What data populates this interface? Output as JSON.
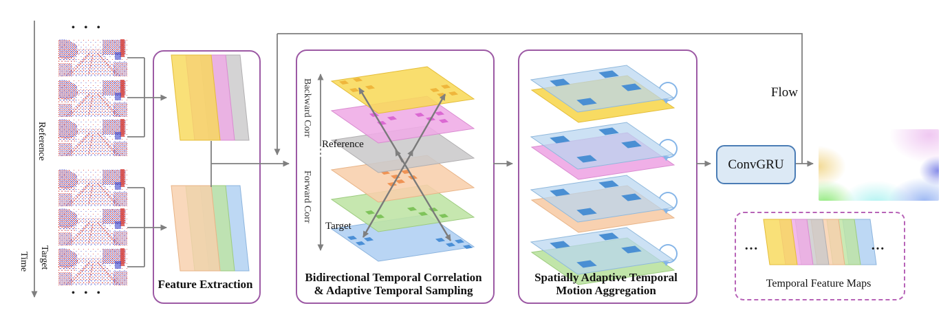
{
  "figure": {
    "time_axis": {
      "label": "Time"
    },
    "inputs": {
      "reference_label": "Reference",
      "target_label": "Target",
      "dots_top": "• • •",
      "dots_bottom": "• • •"
    },
    "feature_extraction": {
      "caption": "Feature Extraction"
    },
    "correlation": {
      "caption_line1": "Bidirectional Temporal Correlation",
      "caption_line2": "&  Adaptive Temporal Sampling",
      "backward_label": "Backward Corr",
      "forward_label": "Forward Corr",
      "reference_label": "Reference",
      "target_label": "Target"
    },
    "aggregation": {
      "caption_line1": "Spatially Adaptive Temporal",
      "caption_line2": "Motion Aggregation"
    },
    "convgru": {
      "label": "ConvGRU"
    },
    "flow": {
      "label": "Flow"
    },
    "legend": {
      "caption": "Temporal Feature Maps",
      "dots_left": "…",
      "dots_right": "…"
    }
  },
  "colors": {
    "line_gray": "#7f7f7f",
    "box_border": "#9c59a4",
    "legend_border": "#b763b7",
    "convgru_fill": "#dce9f5",
    "convgru_border": "#4a7cb5",
    "loop_blue": "#85b5e8",
    "agg_plane_fill": "#b9d6f0",
    "agg_plane_stroke": "#8fb8dc",
    "agg_square": "#4a8fd3",
    "event_red": "#d93025",
    "event_blue": "#2b35c8",
    "sheets": {
      "yellow": "#f8d95a",
      "pink": "#efabe6",
      "gray": "#cbc9cb",
      "orange": "#f8cfac",
      "green": "#bee4a4",
      "blue": "#afcff2"
    },
    "sheet_strokes": {
      "yellow": "#e4bc37",
      "pink": "#d98bd0",
      "gray": "#b0aeb0",
      "orange": "#e8b386",
      "green": "#9ccb7e",
      "blue": "#8cb4de"
    },
    "squares": {
      "yellow": "#efb63c",
      "pink": "#db68d2",
      "orange": "#ef9355",
      "green": "#7fc35b",
      "blue": "#4b8fd6"
    },
    "flow_image": {
      "yellow": "#f2d88f",
      "green": "#7fe668",
      "cyan": "#9ff0ee",
      "blue": "#86a8f0",
      "purple": "#7c82e6",
      "pink": "#eec2f0"
    }
  }
}
